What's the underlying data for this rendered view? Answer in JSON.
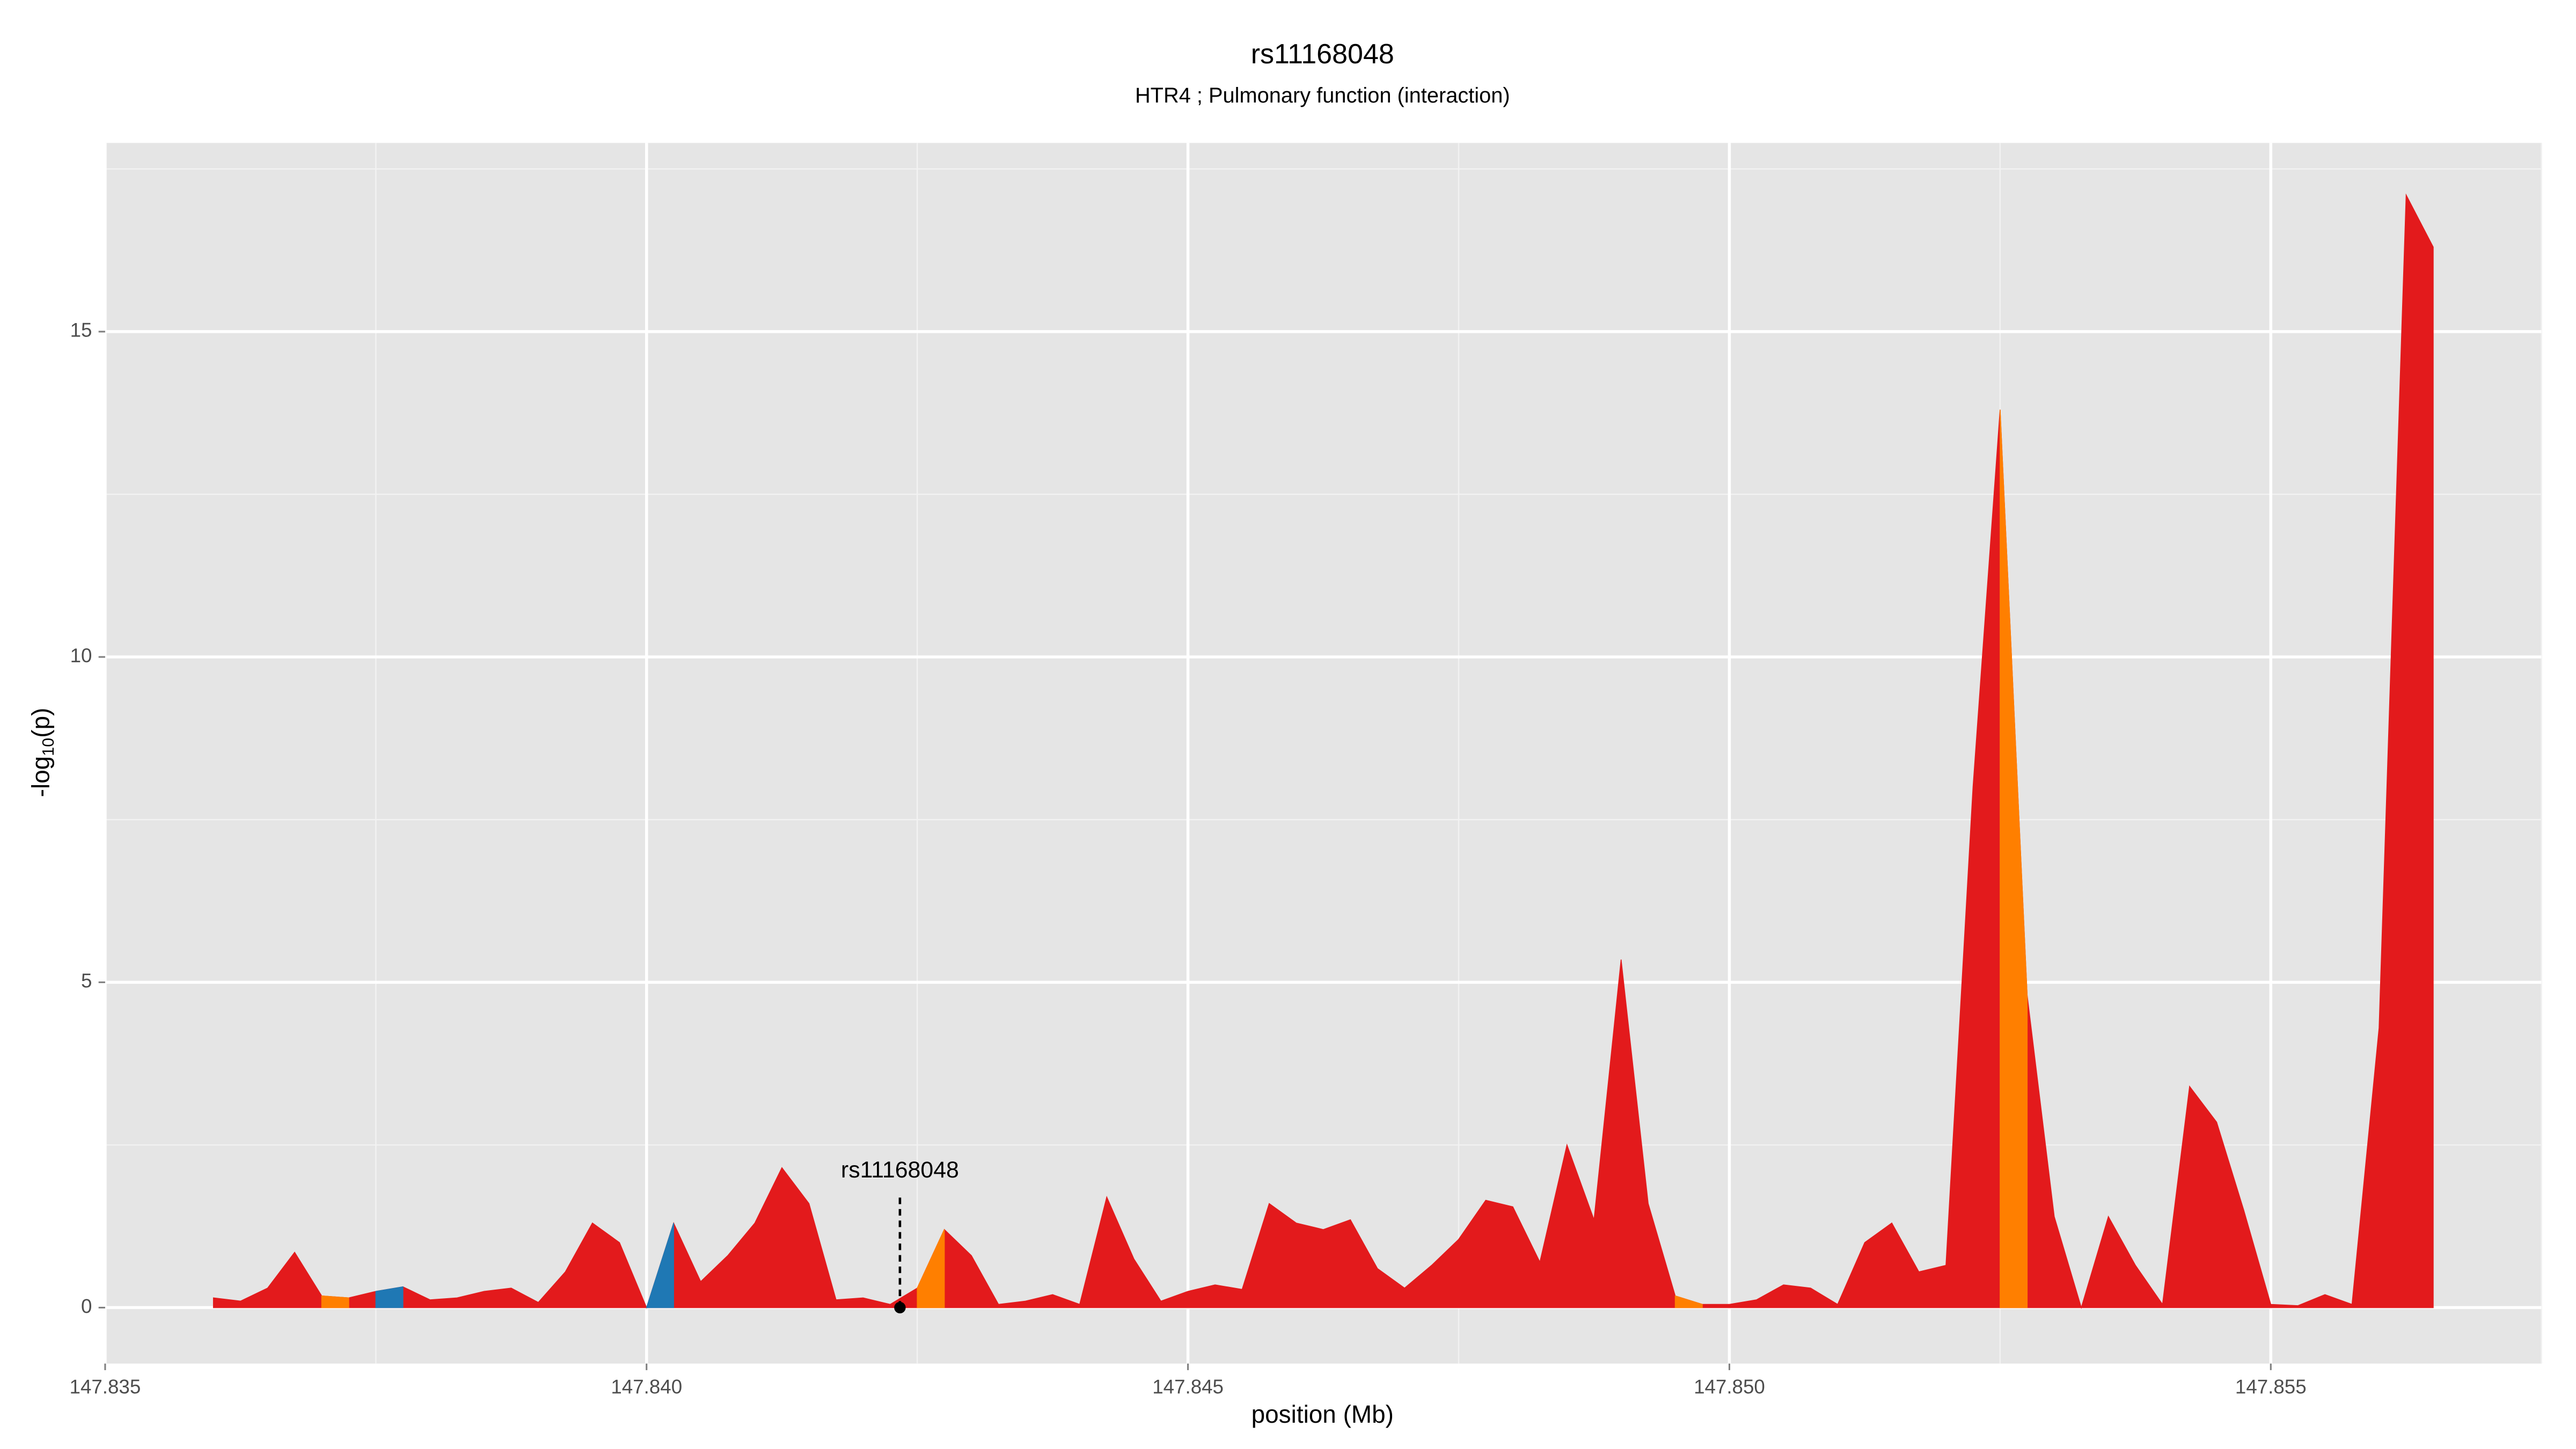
{
  "chart_data": {
    "type": "area",
    "title": "rs11168048",
    "subtitle": "HTR4 ; Pulmonary function (interaction)",
    "x_label": "position (Mb)",
    "y_label": {
      "prefix": "-log",
      "sub": "10",
      "suffix": "(p)"
    },
    "xlim": [
      147.835,
      147.8575
    ],
    "ylim": [
      -0.86,
      17.9
    ],
    "xticks": [
      147.835,
      {
        "value": 147.84,
        "label": "147.840"
      },
      147.845,
      {
        "value": 147.85,
        "label": "147.850"
      },
      147.855
    ],
    "yticks": [
      0,
      5,
      10,
      15
    ],
    "xminor": [
      147.8375,
      147.8425,
      147.8475,
      147.8525,
      147.8575
    ],
    "yminor": [
      2.5,
      7.5,
      12.5,
      17.5
    ],
    "grid": true,
    "series": [
      {
        "color": "#e31a1c",
        "x": [
          147.836,
          147.83625,
          147.8365,
          147.83675,
          147.837,
          147.83725,
          147.8375,
          147.83775,
          147.838,
          147.83825,
          147.8385,
          147.83875,
          147.839,
          147.83925,
          147.8395,
          147.83975,
          147.84,
          147.84025,
          147.8405,
          147.84075,
          147.841,
          147.84125,
          147.8415,
          147.84175,
          147.842,
          147.84225,
          147.8425,
          147.84275,
          147.843,
          147.84325,
          147.8435,
          147.84375,
          147.844,
          147.84425,
          147.8445,
          147.84475,
          147.845,
          147.84525,
          147.8455,
          147.84575,
          147.846,
          147.84625,
          147.8465,
          147.84675,
          147.847,
          147.84725,
          147.8475,
          147.84775,
          147.848,
          147.84825,
          147.8485,
          147.84875,
          147.849,
          147.84925,
          147.8495,
          147.84975,
          147.85,
          147.85025,
          147.8505,
          147.85075,
          147.851,
          147.85125,
          147.8515,
          147.85175,
          147.852,
          147.85225,
          147.8525,
          147.85275,
          147.853,
          147.85325,
          147.8535,
          147.85375,
          147.854,
          147.85425,
          147.8545,
          147.85475,
          147.855,
          147.85525,
          147.8555,
          147.85575,
          147.856,
          147.85625,
          147.8565
        ],
        "values": [
          0.15,
          0.1,
          0.3,
          0.85,
          0.18,
          0.15,
          0.25,
          0.32,
          0.12,
          0.15,
          0.25,
          0.3,
          0.08,
          0.55,
          1.3,
          1.0,
          0.0,
          1.3,
          0.4,
          0.8,
          1.3,
          2.15,
          1.6,
          0.12,
          0.15,
          0.05,
          0.3,
          1.2,
          0.8,
          0.05,
          0.1,
          0.2,
          0.05,
          1.7,
          0.75,
          0.1,
          0.25,
          0.35,
          0.28,
          1.6,
          1.3,
          1.2,
          1.35,
          0.6,
          0.3,
          0.65,
          1.05,
          1.65,
          1.55,
          0.7,
          2.5,
          1.35,
          5.35,
          1.6,
          0.18,
          0.05,
          0.05,
          0.12,
          0.35,
          0.3,
          0.05,
          1.0,
          1.3,
          0.55,
          0.65,
          8.0,
          13.8,
          4.8,
          1.4,
          0.0,
          1.4,
          0.65,
          0.05,
          3.4,
          2.85,
          1.5,
          0.05,
          0.03,
          0.2,
          0.05,
          4.3,
          17.1,
          16.3
        ]
      },
      {
        "color": "#ff7f00",
        "x": [
          147.837,
          147.83725,
          null,
          147.8425,
          147.84275,
          null,
          147.8495,
          147.84975,
          null,
          147.8525,
          147.85275
        ],
        "values": [
          0.18,
          0.15,
          null,
          0.3,
          1.2,
          null,
          0.18,
          0.05,
          null,
          13.8,
          4.8
        ]
      },
      {
        "color": "#1f78b4",
        "x": [
          147.8375,
          147.83775,
          null,
          147.84,
          147.84025
        ],
        "values": [
          0.25,
          0.32,
          null,
          0.0,
          1.3
        ]
      }
    ],
    "annotation": {
      "text": "rs11168048",
      "x": 147.84234,
      "y": 0
    }
  }
}
